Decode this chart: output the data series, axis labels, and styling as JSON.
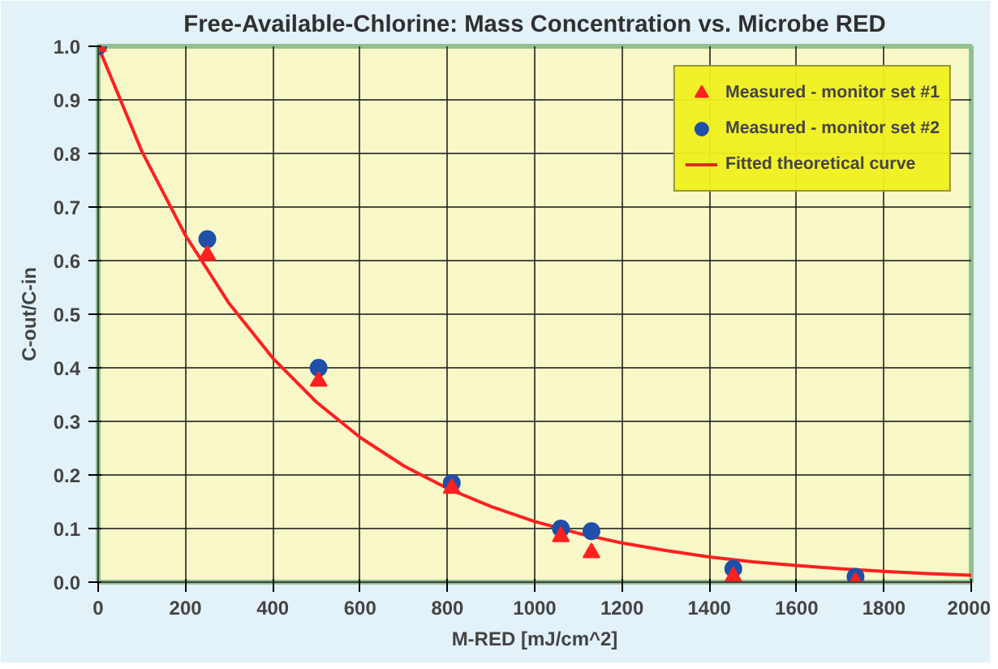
{
  "chart_data": {
    "type": "scatter",
    "title": "Free-Available-Chlorine: Mass Concentration vs. Microbe RED",
    "xlabel": "M-RED [mJ/cm^2]",
    "ylabel": "C-out/C-in",
    "xlim": [
      0,
      2000
    ],
    "ylim": [
      0,
      1.0
    ],
    "xticks": [
      0,
      200,
      400,
      600,
      800,
      1000,
      1200,
      1400,
      1600,
      1800,
      2000
    ],
    "yticks": [
      {
        "value": 0,
        "label": "0.0"
      },
      0.1,
      0.2,
      0.3,
      0.4,
      0.5,
      0.6,
      0.7,
      0.8,
      0.9,
      {
        "value": 1,
        "label": "1.0"
      }
    ],
    "grid": true,
    "legend": "top right",
    "series": [
      {
        "name": "Measured - monitor set #1",
        "marker": "triangle",
        "color": "#ff2020",
        "x": [
          0,
          250,
          505,
          810,
          1060,
          1130,
          1455,
          1735
        ],
        "values": [
          1.0,
          0.61,
          0.375,
          0.175,
          0.085,
          0.055,
          0.01,
          0.0
        ]
      },
      {
        "name": "Measured - monitor set #2",
        "marker": "circle",
        "color": "#1f4fa8",
        "x": [
          0,
          250,
          505,
          810,
          1060,
          1130,
          1455,
          1735
        ],
        "values": [
          1.0,
          0.64,
          0.4,
          0.185,
          0.1,
          0.095,
          0.025,
          0.01
        ]
      },
      {
        "name": "Fitted theoretical curve",
        "type": "line",
        "marker": "none",
        "color": "#ff2020",
        "x": [
          0,
          100,
          200,
          300,
          400,
          500,
          600,
          700,
          800,
          900,
          1000,
          1100,
          1200,
          1300,
          1400,
          1500,
          1600,
          1700,
          1800,
          1900,
          2000
        ],
        "values": [
          1.0,
          0.804,
          0.647,
          0.52,
          0.418,
          0.336,
          0.27,
          0.217,
          0.175,
          0.141,
          0.113,
          0.091,
          0.073,
          0.059,
          0.047,
          0.038,
          0.031,
          0.025,
          0.02,
          0.016,
          0.013
        ]
      }
    ]
  }
}
